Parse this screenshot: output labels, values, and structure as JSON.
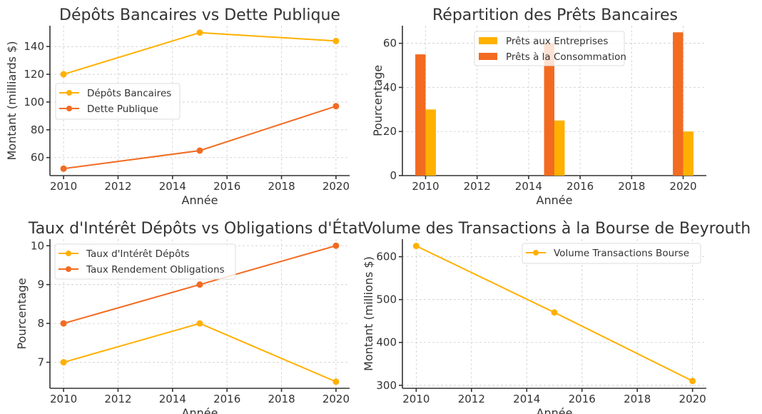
{
  "chart_data": [
    {
      "type": "line",
      "title": "Dépôts Bancaires vs Dette Publique",
      "xlabel": "Année",
      "ylabel": "Montant (milliards $)",
      "x": [
        2010,
        2015,
        2020
      ],
      "xlim": [
        2009.5,
        2020.5
      ],
      "ylim": [
        47,
        155
      ],
      "xticks": [
        2010,
        2012,
        2014,
        2016,
        2018,
        2020
      ],
      "yticks": [
        60,
        80,
        100,
        120,
        140
      ],
      "grid": true,
      "legend": "center-left",
      "series": [
        {
          "name": "Dépôts Bancaires",
          "values": [
            120,
            150,
            144
          ],
          "color": "#FFB000"
        },
        {
          "name": "Dette Publique",
          "values": [
            52,
            65,
            97
          ],
          "color": "#F26B21"
        }
      ]
    },
    {
      "type": "bar",
      "title": "Répartition des Prêts Bancaires",
      "xlabel": "Année",
      "ylabel": "Pourcentage",
      "x": [
        2010,
        2015,
        2020
      ],
      "xlim": [
        2009.1,
        2020.9
      ],
      "ylim": [
        0,
        68
      ],
      "xticks": [
        2010,
        2012,
        2014,
        2016,
        2018,
        2020
      ],
      "yticks": [
        0,
        20,
        40,
        60
      ],
      "grid": true,
      "legend": "top-center",
      "series": [
        {
          "name": "Prêts aux Entreprises",
          "values": [
            30,
            25,
            20
          ],
          "color": "#FFB000",
          "offset": 0.2
        },
        {
          "name": "Prêts à la Consommation",
          "values": [
            55,
            60,
            65
          ],
          "color": "#F26B21",
          "offset": -0.2
        }
      ]
    },
    {
      "type": "line",
      "title": "Taux d'Intérêt Dépôts vs Obligations d'État",
      "xlabel": "Année",
      "ylabel": "Pourcentage",
      "x": [
        2010,
        2015,
        2020
      ],
      "xlim": [
        2009.5,
        2020.5
      ],
      "ylim": [
        6.33,
        10.17
      ],
      "xticks": [
        2010,
        2012,
        2014,
        2016,
        2018,
        2020
      ],
      "yticks": [
        7,
        8,
        9,
        10
      ],
      "grid": true,
      "legend": "top-left",
      "series": [
        {
          "name": "Taux d'Intérêt Dépôts",
          "values": [
            7,
            8,
            6.5
          ],
          "color": "#FFB000"
        },
        {
          "name": "Taux Rendement Obligations",
          "values": [
            8,
            9,
            10
          ],
          "color": "#F26B21"
        }
      ]
    },
    {
      "type": "line",
      "title": "Volume des Transactions à la Bourse de Beyrouth",
      "xlabel": "Année",
      "ylabel": "Montant (millions $)",
      "x": [
        2010,
        2015,
        2020
      ],
      "xlim": [
        2009.5,
        2020.5
      ],
      "ylim": [
        293,
        641
      ],
      "xticks": [
        2010,
        2012,
        2014,
        2016,
        2018,
        2020
      ],
      "yticks": [
        300,
        400,
        500,
        600
      ],
      "grid": true,
      "legend": "top-right",
      "series": [
        {
          "name": "Volume Transactions Bourse",
          "values": [
            625,
            470,
            310
          ],
          "color": "#FFB000"
        }
      ]
    }
  ]
}
